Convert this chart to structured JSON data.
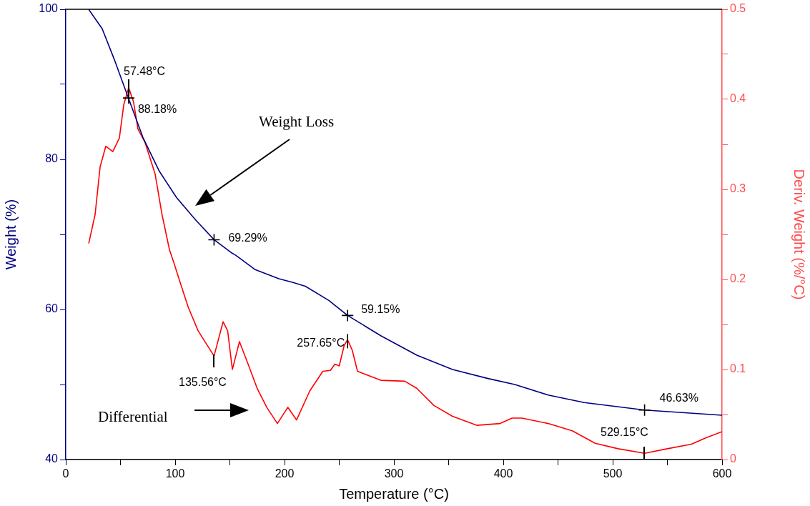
{
  "chart_data": {
    "type": "line",
    "xlabel": "Temperature (°C)",
    "ylabel": "Weight (%)",
    "y2label": "Deriv. Weight (%/°C)",
    "xlim": [
      0,
      600
    ],
    "xticks": [
      0,
      {
        "value": 50,
        "label": null
      },
      100,
      {
        "value": 150,
        "label": null
      },
      200,
      {
        "value": 250,
        "label": null
      },
      300,
      {
        "value": 350,
        "label": null
      },
      400,
      {
        "value": 450,
        "label": null
      },
      500,
      {
        "value": 550,
        "label": null
      },
      600
    ],
    "ylim": [
      40,
      100
    ],
    "yticks": [
      40,
      {
        "value": 50,
        "label": null
      },
      60,
      {
        "value": 70,
        "label": null
      },
      80,
      {
        "value": 90,
        "label": null
      },
      100
    ],
    "y2lim": [
      0,
      0.5
    ],
    "y2ticks": [
      0,
      {
        "value": 0.05,
        "label": null
      },
      0.1,
      {
        "value": 0.15,
        "label": null
      },
      0.2,
      {
        "value": 0.25,
        "label": null
      },
      0.3,
      {
        "value": 0.35,
        "label": null
      },
      0.4,
      {
        "value": 0.45,
        "label": null
      },
      0.5
    ],
    "grid": false,
    "legend": false,
    "marker": "none",
    "series": [
      {
        "color": "#000080",
        "x": [
          20.9,
          33.3,
          44.4,
          56.2,
          70.6,
          85.6,
          101.3,
          118.3,
          135.56,
          151,
          155.6,
          173.2,
          194.8,
          207.8,
          219,
          240.5,
          257.65,
          288,
          321,
          353.6,
          386,
          410.5,
          441,
          474,
          529.15,
          600
        ],
        "values": [
          100,
          97.4,
          93.3,
          88.6,
          82.9,
          78.4,
          74.9,
          72.0,
          69.3,
          67.6,
          67.2,
          65.3,
          64.1,
          63.6,
          63.1,
          61.2,
          59.2,
          56.5,
          53.9,
          52.0,
          50.8,
          50.0,
          48.6,
          47.6,
          46.6,
          45.9
        ]
      },
      {
        "color": "#ff0000",
        "axis": "y2",
        "x": [
          21,
          26.8,
          31.4,
          36.6,
          43,
          49,
          53,
          57.48,
          62,
          66,
          72.5,
          81.7,
          88,
          94.8,
          98.7,
          105,
          112,
          121,
          135.56,
          143.8,
          148,
          152.3,
          158.8,
          166.7,
          175,
          183.7,
          193.5,
          203,
          211,
          223,
          235,
          242,
          246,
          250,
          254.6,
          257.65,
          262,
          266.7,
          288,
          310,
          321,
          336.6,
          353.6,
          375.6,
          397,
          408,
          417,
          441,
          463,
          484,
          505,
          529.15,
          550,
          572,
          585,
          600
        ],
        "values": [
          0.24,
          0.272,
          0.325,
          0.348,
          0.342,
          0.357,
          0.394,
          0.413,
          0.397,
          0.367,
          0.352,
          0.317,
          0.272,
          0.233,
          0.219,
          0.195,
          0.169,
          0.143,
          0.115,
          0.153,
          0.143,
          0.1,
          0.131,
          0.106,
          0.079,
          0.058,
          0.04,
          0.058,
          0.044,
          0.076,
          0.098,
          0.099,
          0.106,
          0.104,
          0.127,
          0.133,
          0.121,
          0.098,
          0.088,
          0.087,
          0.079,
          0.06,
          0.048,
          0.038,
          0.04,
          0.046,
          0.046,
          0.04,
          0.032,
          0.018,
          0.012,
          0.007,
          0.012,
          0.017,
          0.024,
          0.031
        ]
      }
    ],
    "annotations": [
      "57.48°C",
      {
        "text": "88.18%",
        "x": 57.48,
        "y": 88.18
      },
      {
        "text": "69.29%",
        "x": 135.56,
        "y": 69.29
      },
      "135.56°C",
      {
        "text": "59.15%",
        "x": 257.65,
        "y": 59.2
      },
      {
        "text": "257.65°C",
        "x": 257.65
      },
      {
        "text": "46.63%",
        "x": 529.15,
        "y": 46.6
      },
      "529.15°C",
      "Weight Loss",
      "Differential"
    ]
  }
}
